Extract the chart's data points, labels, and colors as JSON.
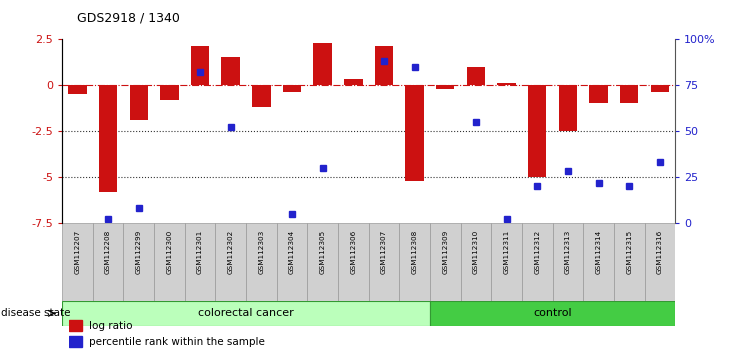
{
  "title": "GDS2918 / 1340",
  "samples": [
    "GSM112207",
    "GSM112208",
    "GSM112299",
    "GSM112300",
    "GSM112301",
    "GSM112302",
    "GSM112303",
    "GSM112304",
    "GSM112305",
    "GSM112306",
    "GSM112307",
    "GSM112308",
    "GSM112309",
    "GSM112310",
    "GSM112311",
    "GSM112312",
    "GSM112313",
    "GSM112314",
    "GSM112315",
    "GSM112316"
  ],
  "log_ratio": [
    -0.5,
    -5.8,
    -1.9,
    -0.8,
    2.1,
    1.5,
    -1.2,
    -0.4,
    2.3,
    0.3,
    2.1,
    -5.2,
    -0.2,
    1.0,
    0.1,
    -5.0,
    -2.5,
    -1.0,
    -1.0,
    -0.4
  ],
  "percentile_rank": [
    null,
    2,
    8,
    null,
    82,
    52,
    null,
    5,
    30,
    null,
    88,
    85,
    null,
    55,
    2,
    20,
    28,
    22,
    20,
    33
  ],
  "colorectal_count": 12,
  "control_count": 8,
  "ylim_left": [
    -7.5,
    2.5
  ],
  "ylim_right": [
    0,
    100
  ],
  "yticks_left": [
    2.5,
    0,
    -2.5,
    -5.0,
    -7.5
  ],
  "yticks_right": [
    100,
    75,
    50,
    25,
    0
  ],
  "ytick_labels_left": [
    "2.5",
    "0",
    "-2.5",
    "-5",
    "-7.5"
  ],
  "ytick_labels_right": [
    "100%",
    "75",
    "50",
    "25",
    "0"
  ],
  "bar_color": "#cc1111",
  "dot_color": "#2222cc",
  "colorectal_color": "#bbffbb",
  "control_color": "#44cc44",
  "colorectal_label": "colorectal cancer",
  "control_label": "control",
  "disease_state_label": "disease state",
  "legend_bar_label": "log ratio",
  "legend_dot_label": "percentile rank within the sample",
  "hline_color": "#cc1111",
  "dotted_line_color": "#333333",
  "background_color": "#ffffff"
}
